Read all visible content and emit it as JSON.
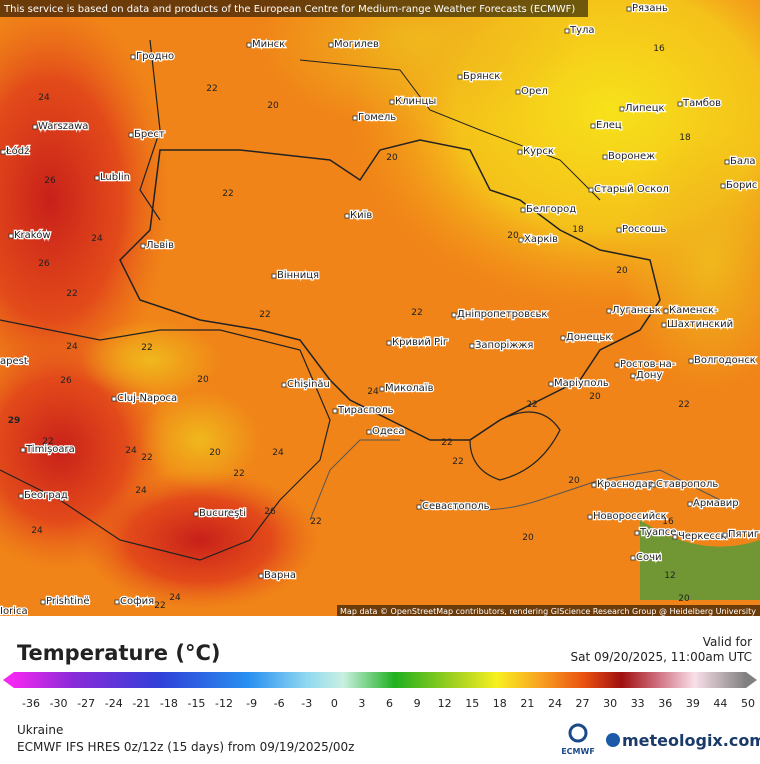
{
  "header": {
    "notice": "This service is based on data and products of the European Centre for Medium-range Weather Forecasts (ECMWF)"
  },
  "map": {
    "attribution": "Map data © OpenStreetMap contributors, rendering GIScience Research Group @ Heidelberg University",
    "cities": [
      "Рязань",
      "Тула",
      "Гродно",
      "Минск",
      "Могилев",
      "Брянск",
      "Орел",
      "Липецк",
      "Тамбов",
      "Клинцы",
      "Гомель",
      "Елец",
      "Warszawa",
      "Брест",
      "Курск",
      "Воронеж",
      "Łódź",
      "Lublin",
      "Старый Оскол",
      "Бала",
      "Борис",
      "Белгород",
      "Kraków",
      "Київ",
      "Львів",
      "Харків",
      "Россошь",
      "Вінниця",
      "Луганськ",
      "Дніпропетровськ",
      "Каменск-",
      "Шахтинский",
      "Донецьк",
      "Запоріжжя",
      "Кривий Ріг",
      "apest",
      "Ростов-на-",
      "Дону",
      "Волгодонск",
      "Chișinău",
      "Миколаїв",
      "Маріуполь",
      "Cluj-Napoca",
      "Тирасполь",
      "Одеса",
      "Timișoara",
      "Београд",
      "Краснодар",
      "Ставрополь",
      "Bucureşti",
      "Севастополь",
      "Армавир",
      "Новороссийск",
      "Туапсе",
      "Черкесск",
      "Пятиг",
      "Сочи",
      "Варна",
      "Prishtinë",
      "София",
      "Iorica"
    ],
    "temperatures": [
      24,
      22,
      20,
      16,
      18,
      20,
      26,
      22,
      24,
      26,
      22,
      20,
      18,
      20,
      22,
      22,
      24,
      22,
      26,
      20,
      24,
      29,
      22,
      24,
      22,
      20,
      22,
      24,
      22,
      22,
      20,
      22,
      22,
      24,
      20,
      26,
      22,
      24,
      20,
      24,
      22,
      16,
      12,
      20
    ]
  },
  "legend": {
    "title": "Temperature (°C)",
    "ticks": [
      -36,
      -30,
      -27,
      -24,
      -21,
      -18,
      -15,
      -12,
      -9,
      -6,
      -3,
      0,
      3,
      6,
      9,
      12,
      15,
      18,
      21,
      24,
      27,
      30,
      33,
      36,
      39,
      44,
      50
    ]
  },
  "footer": {
    "valid_label": "Valid for",
    "valid_time": "Sat 09/20/2025, 11:00am UTC",
    "region": "Ukraine",
    "model": "ECMWF IFS HRES 0z/12z (15 days) from 09/19/2025/00z",
    "ecmwf": "ECMWF",
    "brand": "meteologix.com"
  }
}
